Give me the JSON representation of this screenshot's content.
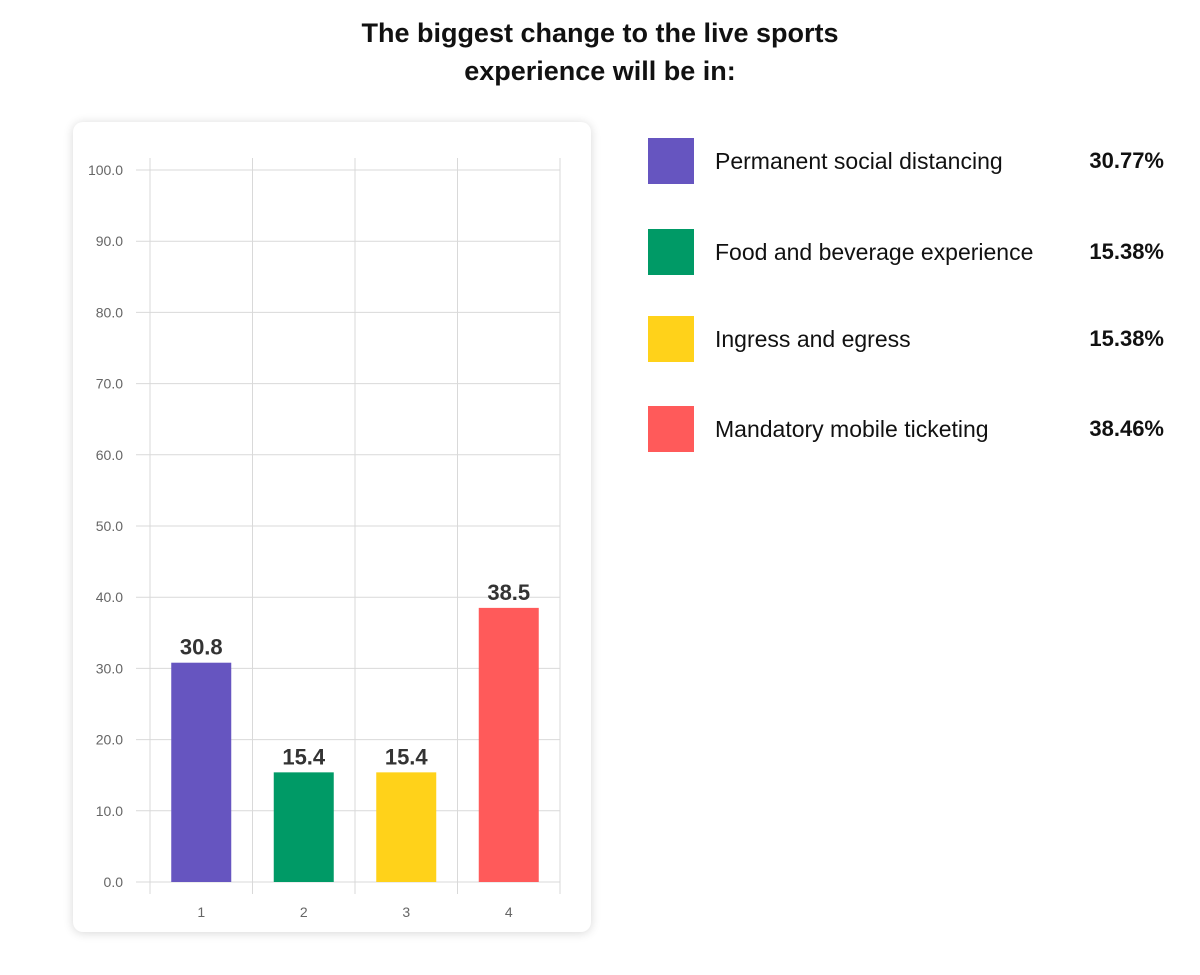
{
  "title": {
    "line1": "The biggest change to the live sports",
    "line2": "experience will be in:"
  },
  "colors": {
    "series1": "#6655C0",
    "series2": "#009A66",
    "series3": "#FFD21A",
    "series4": "#FF5A5A",
    "grid": "#d9d9d9"
  },
  "chart_data": {
    "type": "bar",
    "categories": [
      "1",
      "2",
      "3",
      "4"
    ],
    "values": [
      30.8,
      15.4,
      15.4,
      38.5
    ],
    "value_labels": [
      "30.8",
      "15.4",
      "15.4",
      "38.5"
    ],
    "bar_colors": [
      "#6655C0",
      "#009A66",
      "#FFD21A",
      "#FF5A5A"
    ],
    "ylim": [
      0,
      100
    ],
    "yticks": [
      "0.0",
      "10.0",
      "20.0",
      "30.0",
      "40.0",
      "50.0",
      "60.0",
      "70.0",
      "80.0",
      "90.0",
      "100.0"
    ],
    "grid": true,
    "legend_position": "right",
    "title": "The biggest change to the live sports experience will be in:",
    "xlabel": "",
    "ylabel": ""
  },
  "legend": [
    {
      "label": "Permanent social distancing",
      "value": "30.77%",
      "color": "#6655C0"
    },
    {
      "label": "Food and beverage experience",
      "value": "15.38%",
      "color": "#009A66"
    },
    {
      "label": "Ingress and egress",
      "value": "15.38%",
      "color": "#FFD21A"
    },
    {
      "label": "Mandatory mobile ticketing",
      "value": "38.46%",
      "color": "#FF5A5A"
    }
  ]
}
